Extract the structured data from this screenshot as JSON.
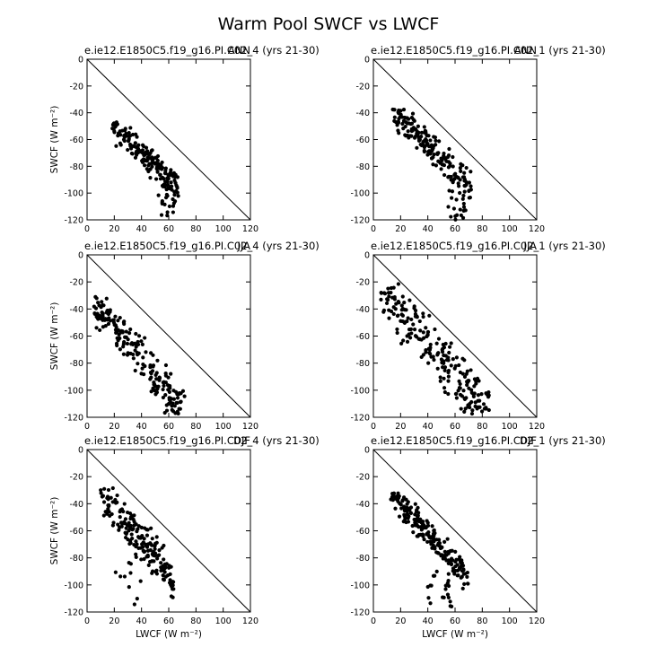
{
  "title": "Warm Pool SWCF vs LWCF",
  "chart_data": [
    {
      "type": "scatter",
      "title": "e.ie12.E1850C5.f19_g16.PI.C02_4 (yrs 21-30)",
      "corner": "ANN",
      "ylabel": "SWCF (W m⁻²)",
      "xlabel": "",
      "xlim": [
        0,
        120
      ],
      "ylim": [
        -120,
        0
      ],
      "xticks": [
        0,
        20,
        40,
        60,
        80,
        100,
        120
      ],
      "yticks": [
        0,
        -20,
        -40,
        -60,
        -80,
        -100,
        -120
      ],
      "reference_line": [
        [
          0,
          0
        ],
        [
          120,
          -120
        ]
      ],
      "cloud": {
        "n": 170,
        "x_range": [
          18,
          67
        ],
        "y_range": [
          -120,
          -47
        ],
        "slope": -1.0,
        "intercept": -30,
        "spread": 5,
        "tail": {
          "x_range": [
            52,
            65
          ],
          "y_range": [
            -120,
            -93
          ],
          "n": 20
        },
        "seed": 11
      }
    },
    {
      "type": "scatter",
      "title": "e.ie12.E1850C5.f19_g16.PI.C02_1 (yrs 21-30)",
      "corner": "ANN",
      "ylabel": "",
      "xlabel": "",
      "xlim": [
        0,
        120
      ],
      "ylim": [
        -120,
        0
      ],
      "xticks": [
        0,
        20,
        40,
        60,
        80,
        100,
        120
      ],
      "yticks": [
        0,
        -20,
        -40,
        -60,
        -80,
        -100,
        -120
      ],
      "reference_line": [
        [
          0,
          0
        ],
        [
          120,
          -120
        ]
      ],
      "cloud": {
        "n": 180,
        "x_range": [
          14,
          72
        ],
        "y_range": [
          -120,
          -37
        ],
        "slope": -1.05,
        "intercept": -22,
        "spread": 6,
        "tail": {
          "x_range": [
            55,
            68
          ],
          "y_range": [
            -120,
            -95
          ],
          "n": 18
        },
        "seed": 23
      }
    },
    {
      "type": "scatter",
      "title": "e.ie12.E1850C5.f19_g16.PI.C02_4 (yrs 21-30)",
      "corner": "JJA",
      "ylabel": "SWCF (W m⁻²)",
      "xlabel": "",
      "xlim": [
        0,
        120
      ],
      "ylim": [
        -120,
        0
      ],
      "xticks": [
        0,
        20,
        40,
        60,
        80,
        100,
        120
      ],
      "yticks": [
        0,
        -20,
        -40,
        -60,
        -80,
        -100,
        -120
      ],
      "reference_line": [
        [
          0,
          0
        ],
        [
          120,
          -120
        ]
      ],
      "cloud": {
        "n": 190,
        "x_range": [
          5,
          72
        ],
        "y_range": [
          -118,
          -30
        ],
        "slope": -1.2,
        "intercept": -30,
        "spread": 7,
        "tail": {
          "x_range": [
            55,
            70
          ],
          "y_range": [
            -118,
            -100
          ],
          "n": 14
        },
        "seed": 37
      }
    },
    {
      "type": "scatter",
      "title": "e.ie12.E1850C5.f19_g16.PI.C02_1 (yrs 21-30)",
      "corner": "JJA",
      "ylabel": "",
      "xlabel": "",
      "xlim": [
        0,
        120
      ],
      "ylim": [
        -120,
        0
      ],
      "xticks": [
        0,
        20,
        40,
        60,
        80,
        100,
        120
      ],
      "yticks": [
        0,
        -20,
        -40,
        -60,
        -80,
        -100,
        -120
      ],
      "reference_line": [
        [
          0,
          0
        ],
        [
          120,
          -120
        ]
      ],
      "cloud": {
        "n": 200,
        "x_range": [
          4,
          85
        ],
        "y_range": [
          -118,
          -21
        ],
        "slope": -1.15,
        "intercept": -18,
        "spread": 10,
        "tail": {
          "x_range": [
            60,
            85
          ],
          "y_range": [
            -118,
            -100
          ],
          "n": 16
        },
        "seed": 53
      }
    },
    {
      "type": "scatter",
      "title": "e.ie12.E1850C5.f19_g16.PI.C02_4 (yrs 21-30)",
      "corner": "DJF",
      "ylabel": "SWCF (W m⁻²)",
      "xlabel": "LWCF (W m⁻²)",
      "xlim": [
        0,
        120
      ],
      "ylim": [
        -120,
        0
      ],
      "xticks": [
        0,
        20,
        40,
        60,
        80,
        100,
        120
      ],
      "yticks": [
        0,
        -20,
        -40,
        -60,
        -80,
        -100,
        -120
      ],
      "reference_line": [
        [
          0,
          0
        ],
        [
          120,
          -120
        ]
      ],
      "cloud": {
        "n": 190,
        "x_range": [
          10,
          64
        ],
        "y_range": [
          -115,
          -28
        ],
        "slope": -1.2,
        "intercept": -20,
        "spread": 7,
        "tail": {
          "x_range": [
            20,
            40
          ],
          "y_range": [
            -115,
            -80
          ],
          "n": 10
        },
        "seed": 71
      }
    },
    {
      "type": "scatter",
      "title": "e.ie12.E1850C5.f19_g16.PI.C02_1 (yrs 21-30)",
      "corner": "DJF",
      "ylabel": "",
      "xlabel": "LWCF (W m⁻²)",
      "xlim": [
        0,
        120
      ],
      "ylim": [
        -120,
        0
      ],
      "xticks": [
        0,
        20,
        40,
        60,
        80,
        100,
        120
      ],
      "yticks": [
        0,
        -20,
        -40,
        -60,
        -80,
        -100,
        -120
      ],
      "reference_line": [
        [
          0,
          0
        ],
        [
          120,
          -120
        ]
      ],
      "cloud": {
        "n": 190,
        "x_range": [
          12,
          70
        ],
        "y_range": [
          -118,
          -31
        ],
        "slope": -1.1,
        "intercept": -18,
        "spread": 5,
        "tail": {
          "x_range": [
            40,
            60
          ],
          "y_range": [
            -118,
            -90
          ],
          "n": 22
        },
        "seed": 89
      }
    }
  ]
}
